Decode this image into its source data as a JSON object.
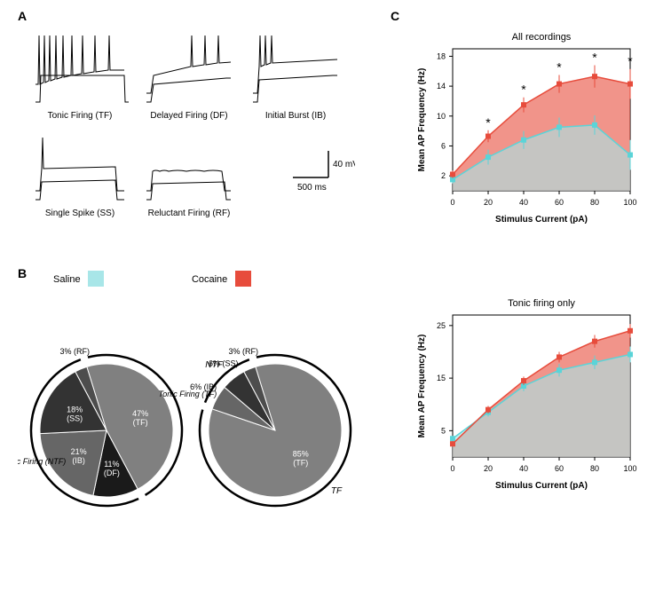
{
  "panelA": {
    "label": "A",
    "traces": [
      {
        "name": "Tonic Firing (TF)"
      },
      {
        "name": "Delayed Firing (DF)"
      },
      {
        "name": "Initial Burst (IB)"
      },
      {
        "name": "Single Spike (SS)"
      },
      {
        "name": "Reluctant Firing (RF)"
      }
    ],
    "scale_v": "40 mV",
    "scale_t": "500 ms"
  },
  "panelB": {
    "label": "B",
    "legend": {
      "saline": "Saline",
      "cocaine": "Cocaine"
    },
    "colors": {
      "saline": "#a8e6e8",
      "cocaine": "#e74c3c"
    },
    "pie_saline": {
      "outer_tf": "Tonic Firing (TF)",
      "outer_ntf": "Non Tonic Firing (NTF)",
      "slices": [
        {
          "label": "47%\n(TF)",
          "value": 47,
          "color": "#808080"
        },
        {
          "label": "11%\n(DF)",
          "value": 11,
          "color": "#1a1a1a"
        },
        {
          "label": "21%\n(IB)",
          "value": 21,
          "color": "#666666"
        },
        {
          "label": "18%\n(SS)",
          "value": 18,
          "color": "#333333"
        },
        {
          "label": "3% (RF)",
          "value": 3,
          "color": "#4d4d4d"
        }
      ]
    },
    "pie_cocaine": {
      "outer_tf": "TF",
      "outer_ntf": "NTF",
      "slices": [
        {
          "label": "85%\n(TF)",
          "value": 85,
          "color": "#808080"
        },
        {
          "label": "6% (IB)",
          "value": 6,
          "color": "#666666"
        },
        {
          "label": "6% (SS)",
          "value": 6,
          "color": "#333333"
        },
        {
          "label": "3% (RF)",
          "value": 3,
          "color": "#4d4d4d"
        }
      ]
    }
  },
  "panelC": {
    "label": "C",
    "charts": [
      {
        "title": "All recordings",
        "xlabel": "Stimulus Current (pA)",
        "ylabel": "Mean AP Frequency (Hz)",
        "xvals": [
          0,
          20,
          40,
          60,
          80,
          100
        ],
        "ylim": [
          0,
          19
        ],
        "yticks": [
          2,
          6,
          10,
          14,
          18
        ],
        "colors": {
          "saline": "#a8e6e8",
          "cocaine": "#e74c3c",
          "saline_marker": "#5ad4d8",
          "cocaine_marker": "#e74c3c"
        },
        "saline": [
          1.5,
          4.5,
          6.8,
          8.5,
          8.8,
          4.8
        ],
        "saline_err": [
          0.5,
          1.0,
          1.2,
          1.3,
          1.3,
          2.0
        ],
        "cocaine": [
          2.2,
          7.3,
          11.5,
          14.3,
          15.3,
          14.3
        ],
        "cocaine_err": [
          0.5,
          0.8,
          1.0,
          1.2,
          1.5,
          2.0
        ],
        "sig": [
          false,
          true,
          true,
          true,
          true,
          true
        ]
      },
      {
        "title": "Tonic firing only",
        "xlabel": "Stimulus Current (pA)",
        "ylabel": "Mean AP Frequency (Hz)",
        "xvals": [
          0,
          20,
          40,
          60,
          80,
          100
        ],
        "ylim": [
          0,
          27
        ],
        "yticks": [
          5,
          15,
          25
        ],
        "colors": {
          "saline": "#a8e6e8",
          "cocaine": "#e74c3c",
          "saline_marker": "#5ad4d8",
          "cocaine_marker": "#e74c3c"
        },
        "saline": [
          3.5,
          8.5,
          13.5,
          16.5,
          18.0,
          19.5
        ],
        "saline_err": [
          0.5,
          0.8,
          1.0,
          1.2,
          1.3,
          1.5
        ],
        "cocaine": [
          2.5,
          9.0,
          14.5,
          19.0,
          22.0,
          24.0
        ],
        "cocaine_err": [
          0.5,
          0.7,
          0.8,
          1.0,
          1.2,
          1.3
        ],
        "sig": [
          false,
          false,
          false,
          false,
          false,
          false
        ]
      }
    ]
  }
}
